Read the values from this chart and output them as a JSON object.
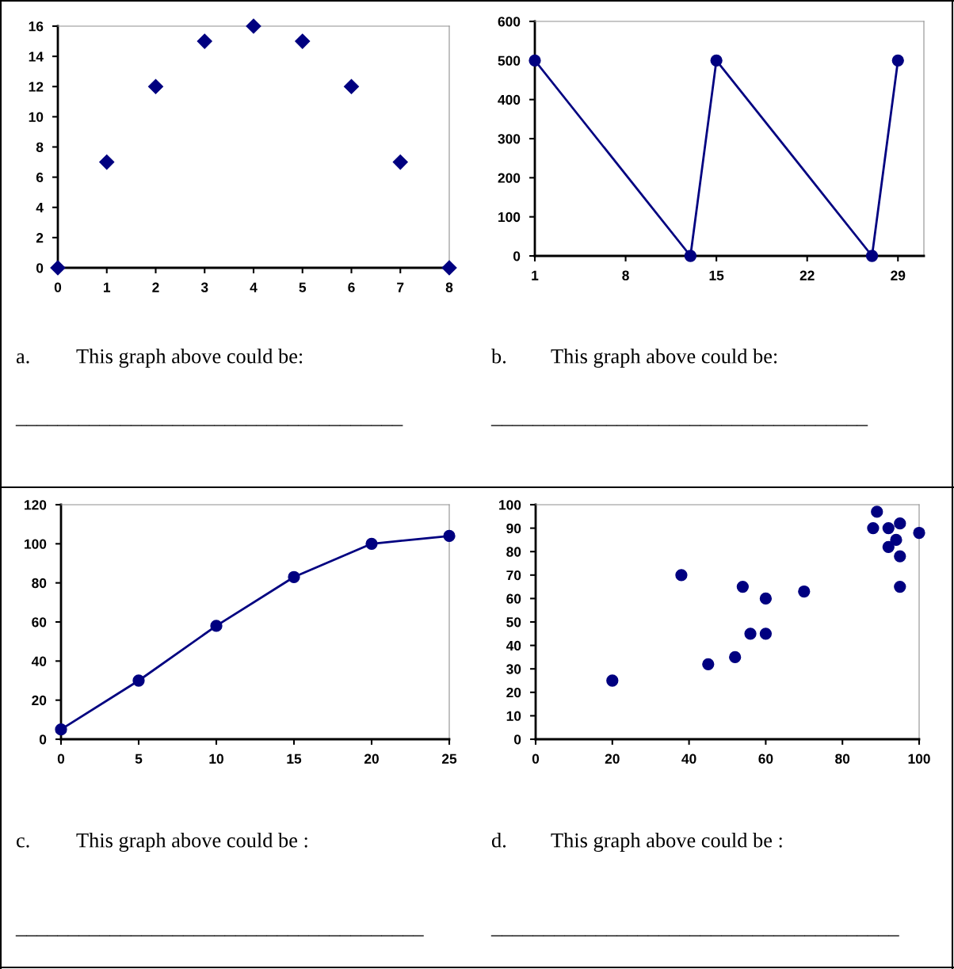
{
  "chart_data": [
    {
      "type": "scatter",
      "x": [
        0,
        1,
        2,
        3,
        4,
        5,
        6,
        7,
        8
      ],
      "values": [
        0,
        7,
        12,
        15,
        16,
        15,
        12,
        7,
        0
      ],
      "color": "#000080",
      "marker": "diamond",
      "xlim": [
        0,
        8
      ],
      "xticks": [
        0,
        1,
        2,
        3,
        4,
        5,
        6,
        7,
        8
      ],
      "ylim": [
        0,
        16
      ],
      "yticks": [
        0,
        2,
        4,
        6,
        8,
        10,
        12,
        14,
        16
      ],
      "grid": false,
      "annotations": [
        "a.",
        "This graph above could be:",
        "_____________________________________"
      ]
    },
    {
      "type": "line",
      "x": [
        1,
        13,
        15,
        27,
        29
      ],
      "values": [
        500,
        0,
        500,
        0,
        500
      ],
      "color": "#000080",
      "marker": "circle",
      "line_style": "solid",
      "xlim": [
        1,
        31
      ],
      "xticks": [
        1,
        8,
        15,
        22,
        29
      ],
      "ylim": [
        0,
        600
      ],
      "yticks": [
        0,
        100,
        200,
        300,
        400,
        500,
        600
      ],
      "grid": false,
      "annotations": [
        "b.",
        "This graph above could be:",
        "____________________________________"
      ]
    },
    {
      "type": "line",
      "x": [
        0,
        5,
        10,
        15,
        20,
        25
      ],
      "values": [
        5,
        30,
        58,
        83,
        100,
        104
      ],
      "color": "#000080",
      "marker": "circle",
      "line_style": "solid",
      "xlim": [
        0,
        25
      ],
      "xticks": [
        0,
        5,
        10,
        15,
        20,
        25
      ],
      "ylim": [
        0,
        120
      ],
      "yticks": [
        0,
        20,
        40,
        60,
        80,
        100,
        120
      ],
      "grid": false,
      "annotations": [
        "c.",
        "This graph above could be :",
        "_______________________________________"
      ]
    },
    {
      "type": "scatter",
      "x": [
        20,
        38,
        45,
        52,
        54,
        56,
        60,
        60,
        70,
        88,
        89,
        92,
        92,
        94,
        95,
        95,
        95,
        100
      ],
      "values": [
        25,
        70,
        32,
        35,
        65,
        45,
        45,
        60,
        63,
        90,
        97,
        90,
        82,
        85,
        92,
        78,
        65,
        88
      ],
      "color": "#000080",
      "marker": "circle",
      "xlim": [
        0,
        100
      ],
      "xticks": [
        0,
        20,
        40,
        60,
        80,
        100
      ],
      "ylim": [
        0,
        100
      ],
      "yticks": [
        0,
        10,
        20,
        30,
        40,
        50,
        60,
        70,
        80,
        90,
        100
      ],
      "grid": false,
      "annotations": [
        "d.",
        "This graph above could be :",
        "_______________________________________"
      ]
    }
  ]
}
